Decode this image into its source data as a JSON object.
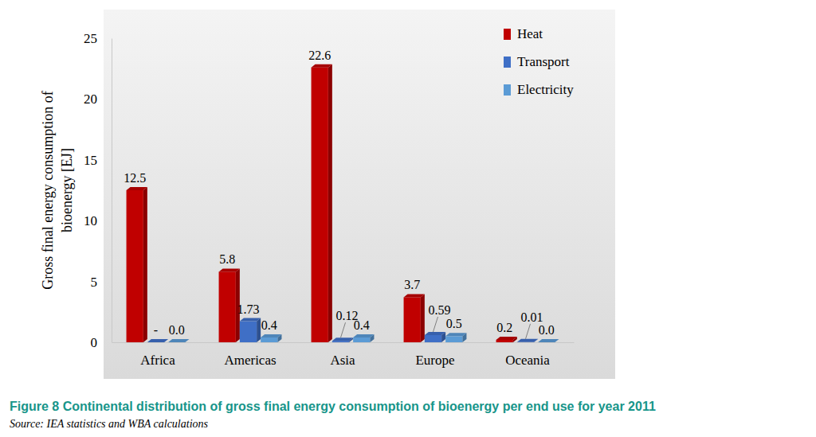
{
  "chart_data": {
    "type": "bar",
    "title": "Figure 8 Continental distribution of gross final energy consumption of bioenergy per end use for year 2011",
    "subtitle": "Source: IEA statistics and WBA calculations",
    "y_label": "Gross final energy consumption of bioenergy [EJ]",
    "categories": [
      "Africa",
      "Americas",
      "Asia",
      "Europe",
      "Oceania"
    ],
    "series": [
      {
        "name": "Heat",
        "color": "#c00000",
        "values": [
          12.5,
          5.8,
          22.6,
          3.7,
          0.2
        ],
        "value_labels": [
          "12.5",
          "5.8",
          "22.6",
          "3.7",
          "0.2"
        ]
      },
      {
        "name": "Transport",
        "color": "#3f6fc6",
        "values": [
          0,
          1.73,
          0.12,
          0.59,
          0.01
        ],
        "value_labels": [
          "-",
          "1.73",
          "0.12",
          "0.59",
          "0.01"
        ]
      },
      {
        "name": "Electricity",
        "color": "#5b9bd5",
        "values": [
          0,
          0.4,
          0.4,
          0.5,
          0
        ],
        "value_labels": [
          "0.0",
          "0.4",
          "0.4",
          "0.5",
          "0.0"
        ]
      }
    ],
    "ylim": [
      0,
      25
    ],
    "yticks": [
      0,
      5,
      10,
      15,
      20,
      25
    ],
    "grid": false,
    "legend": "top-right",
    "data_labels": true
  }
}
